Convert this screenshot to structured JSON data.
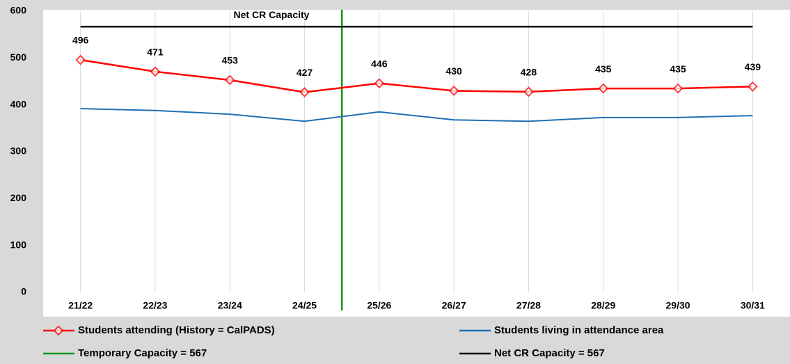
{
  "chart_data": {
    "type": "line",
    "categories": [
      "21/22",
      "22/23",
      "23/24",
      "24/25",
      "25/26",
      "26/27",
      "27/28",
      "28/29",
      "29/30",
      "30/31"
    ],
    "series": [
      {
        "name": "Students attending (History = CalPADS)",
        "color": "#ff0000",
        "marker": "diamond",
        "data_labels": true,
        "values": [
          496,
          471,
          453,
          427,
          446,
          430,
          428,
          435,
          435,
          439
        ]
      },
      {
        "name": "Students living in attendance area",
        "color": "#1f6fb5",
        "values": [
          392,
          388,
          380,
          365,
          385,
          368,
          365,
          373,
          373,
          377
        ]
      }
    ],
    "reference_lines": [
      {
        "name": "Temporary Capacity = 567",
        "color": "#109618",
        "orientation": "vertical"
      },
      {
        "name": "Net CR Capacity = 567",
        "color": "#000000",
        "orientation": "horizontal",
        "value": 567,
        "label": "Net CR Capacity"
      }
    ],
    "ylim": [
      0,
      600
    ],
    "yticks": [
      0,
      100,
      200,
      300,
      400,
      500,
      600
    ],
    "grid": "x"
  }
}
